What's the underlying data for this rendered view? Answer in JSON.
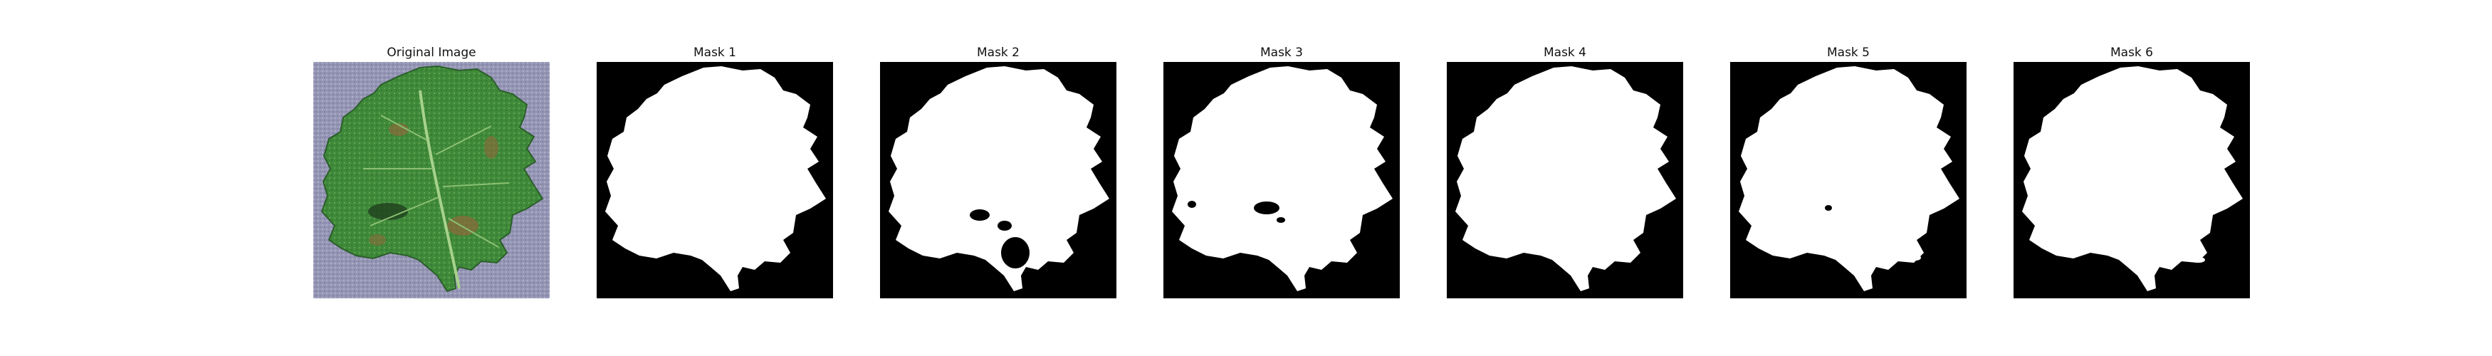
{
  "figure": {
    "panels": [
      {
        "title": "Original Image",
        "kind": "photo",
        "image": "leaf-photo"
      },
      {
        "title": "Mask 1",
        "kind": "mask",
        "image": "leaf-mask"
      },
      {
        "title": "Mask 2",
        "kind": "mask",
        "image": "leaf-mask"
      },
      {
        "title": "Mask 3",
        "kind": "mask",
        "image": "leaf-mask"
      },
      {
        "title": "Mask 4",
        "kind": "mask",
        "image": "leaf-mask"
      },
      {
        "title": "Mask 5",
        "kind": "mask",
        "image": "leaf-mask"
      },
      {
        "title": "Mask 6",
        "kind": "mask",
        "image": "leaf-mask"
      }
    ],
    "colors": {
      "mask_background": "#000000",
      "mask_foreground": "#ffffff",
      "photo_background": "#8f8fb0",
      "leaf_green": "#3f8a3a",
      "leaf_dark": "#2b5e2a",
      "lesion_brown": "#8a6a3a"
    }
  }
}
